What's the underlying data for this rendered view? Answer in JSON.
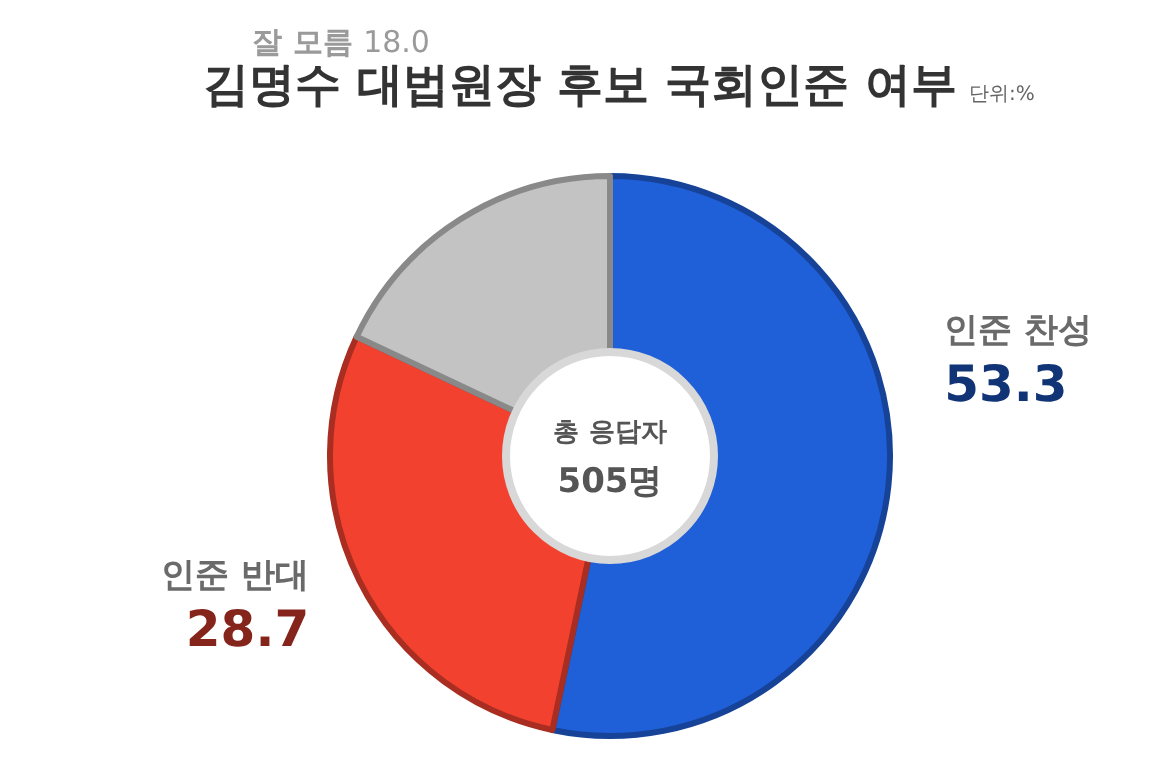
{
  "chart_data": {
    "type": "donut",
    "title": "김명수 대법원장 후보 국회인준 여부",
    "subtitle": "단위:%",
    "categories": [
      "인준 찬성",
      "인준 반대",
      "잘 모름"
    ],
    "values": [
      53.3,
      28.7,
      18.0
    ],
    "colors": [
      "#1f5fd8",
      "#f2422f",
      "#c3c3c3"
    ],
    "value_labels": [
      "53.3",
      "28.7",
      "18.0"
    ],
    "annotations": [
      "총 응답자",
      "505명"
    ]
  }
}
